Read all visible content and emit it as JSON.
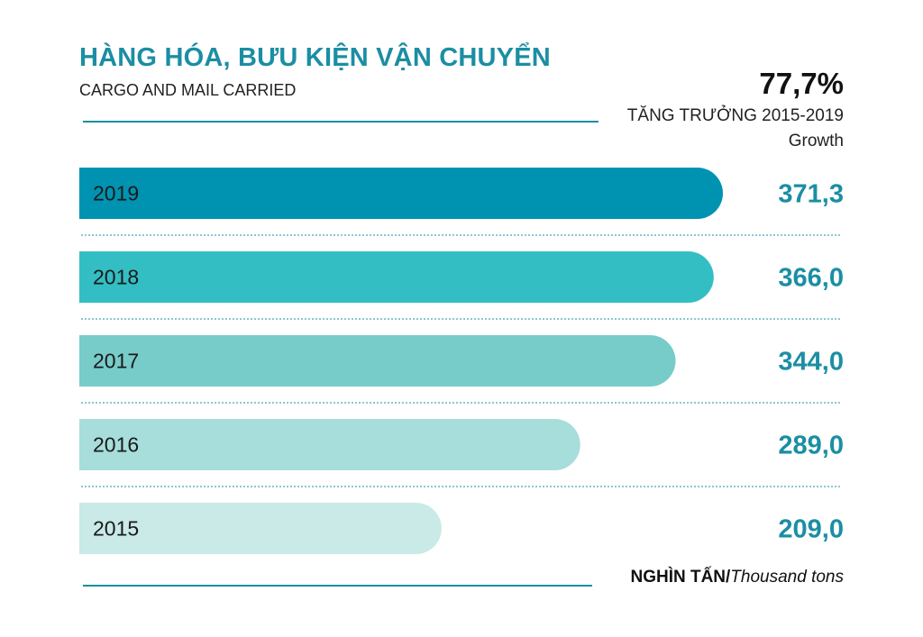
{
  "header": {
    "title": "HÀNG HÓA, BƯU KIỆN VẬN CHUYỂN",
    "subtitle": "CARGO AND MAIL CARRIED"
  },
  "growth": {
    "value": "77,7%",
    "label": "TĂNG TRƯỞNG 2015-2019",
    "sublabel": "Growth"
  },
  "unit": {
    "vi": "NGHÌN TẤN/",
    "en": "Thousand tons"
  },
  "colors": {
    "title": "#1b8ea3",
    "value_text": "#1b8ea3",
    "bar_2019": "#0093b1",
    "bar_2018": "#33bec3",
    "bar_2017": "#77ccc9",
    "bar_2016": "#a7dddb",
    "bar_2015": "#c9eae7"
  },
  "chart_data": {
    "type": "bar",
    "orientation": "horizontal",
    "categories": [
      "2019",
      "2018",
      "2017",
      "2016",
      "2015"
    ],
    "values": [
      371.3,
      366.0,
      344.0,
      289.0,
      209.0
    ],
    "value_labels": [
      "371,3",
      "366,0",
      "344,0",
      "289,0",
      "209,0"
    ],
    "bar_colors": [
      "#0093b1",
      "#33bec3",
      "#77ccc9",
      "#a7dddb",
      "#c9eae7"
    ],
    "title": "HÀNG HÓA, BƯU KIỆN VẬN CHUYỂN",
    "xlabel": "",
    "ylabel": "",
    "grid": false,
    "legend": "none"
  }
}
